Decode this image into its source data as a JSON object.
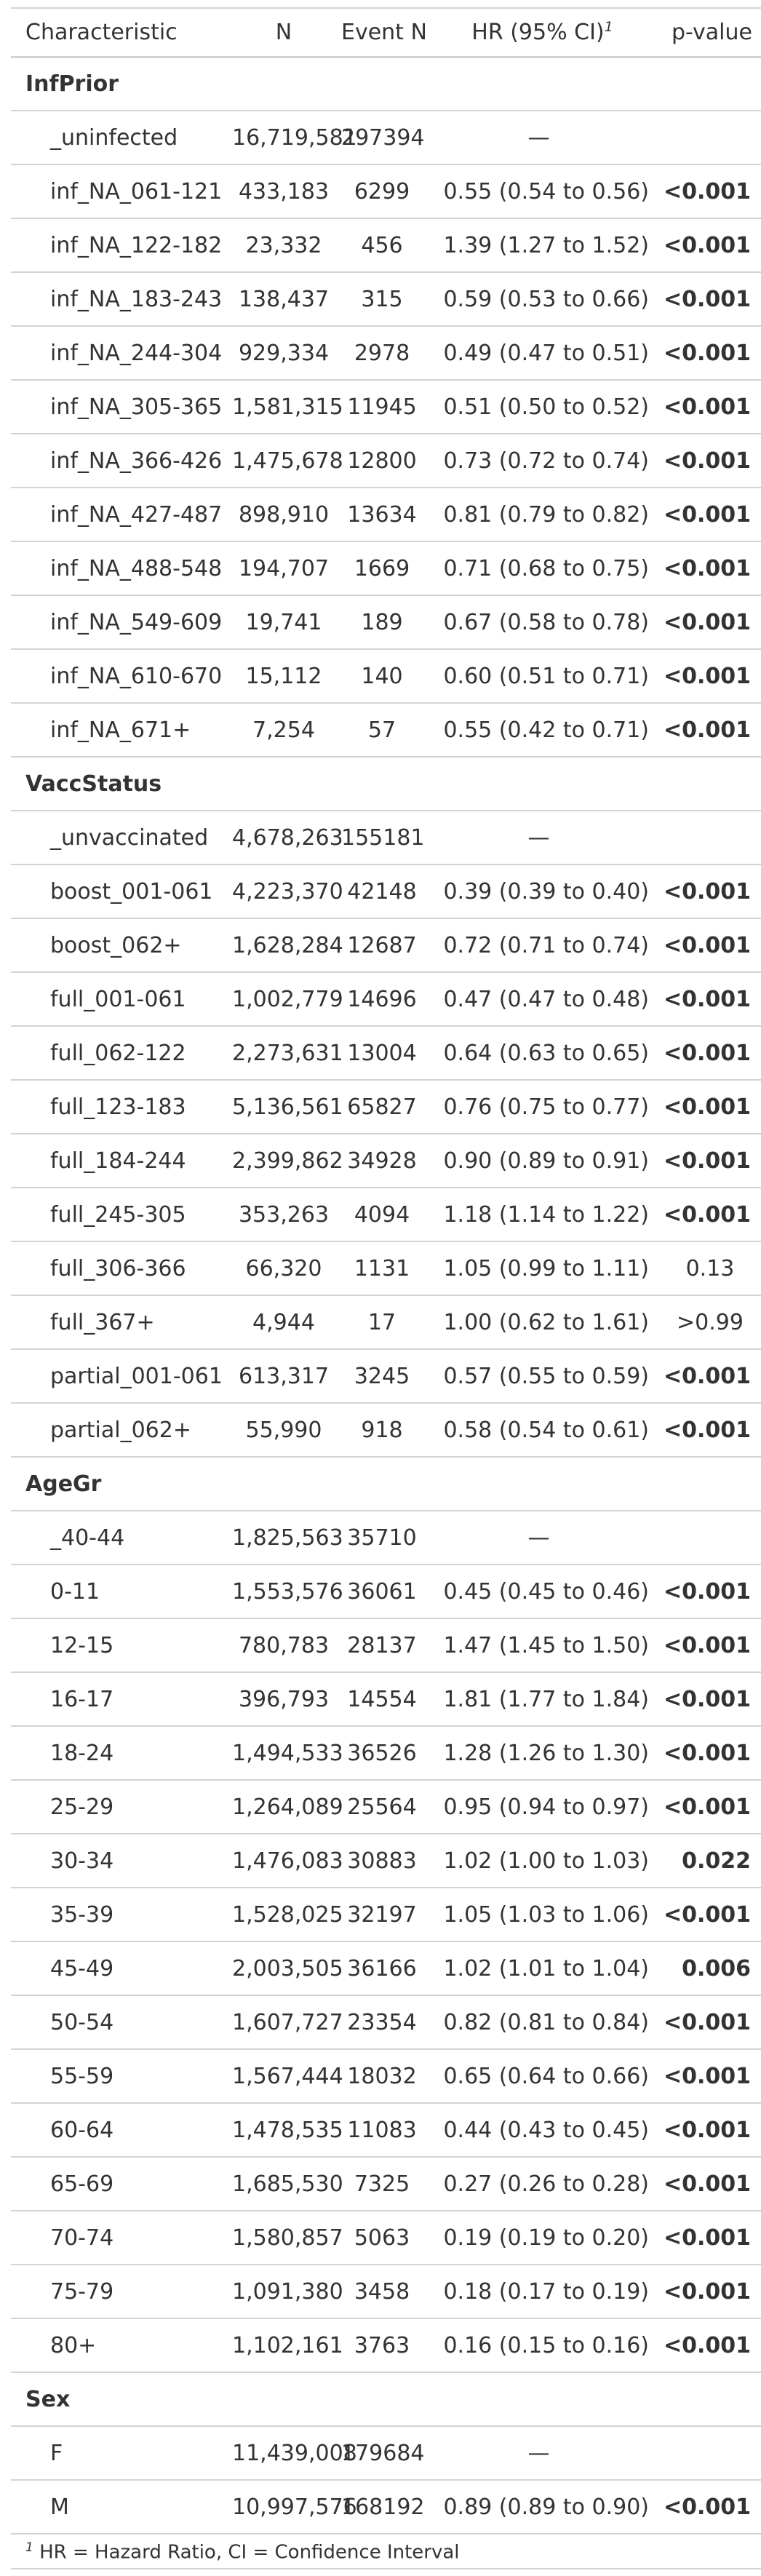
{
  "header": {
    "characteristic": "Characteristic",
    "n": "N",
    "event_n": "Event N",
    "hr": "HR (95% CI)",
    "hr_footnote_mark": "1",
    "p_value": "p-value"
  },
  "groups": [
    {
      "label": "InfPrior",
      "rows": [
        {
          "label": "_uninfected",
          "n": "16,719,581",
          "events": "297394",
          "hr": "—",
          "p": ""
        },
        {
          "label": "inf_NA_061-121",
          "n": "433,183",
          "events": "6299",
          "hr": "0.55 (0.54 to 0.56)",
          "p": "<0.001"
        },
        {
          "label": "inf_NA_122-182",
          "n": "23,332",
          "events": "456",
          "hr": "1.39 (1.27 to 1.52)",
          "p": "<0.001"
        },
        {
          "label": "inf_NA_183-243",
          "n": "138,437",
          "events": "315",
          "hr": "0.59 (0.53 to 0.66)",
          "p": "<0.001"
        },
        {
          "label": "inf_NA_244-304",
          "n": "929,334",
          "events": "2978",
          "hr": "0.49 (0.47 to 0.51)",
          "p": "<0.001"
        },
        {
          "label": "inf_NA_305-365",
          "n": "1,581,315",
          "events": "11945",
          "hr": "0.51 (0.50 to 0.52)",
          "p": "<0.001"
        },
        {
          "label": "inf_NA_366-426",
          "n": "1,475,678",
          "events": "12800",
          "hr": "0.73 (0.72 to 0.74)",
          "p": "<0.001"
        },
        {
          "label": "inf_NA_427-487",
          "n": "898,910",
          "events": "13634",
          "hr": "0.81 (0.79 to 0.82)",
          "p": "<0.001"
        },
        {
          "label": "inf_NA_488-548",
          "n": "194,707",
          "events": "1669",
          "hr": "0.71 (0.68 to 0.75)",
          "p": "<0.001"
        },
        {
          "label": "inf_NA_549-609",
          "n": "19,741",
          "events": "189",
          "hr": "0.67 (0.58 to 0.78)",
          "p": "<0.001"
        },
        {
          "label": "inf_NA_610-670",
          "n": "15,112",
          "events": "140",
          "hr": "0.60 (0.51 to 0.71)",
          "p": "<0.001"
        },
        {
          "label": "inf_NA_671+",
          "n": "7,254",
          "events": "57",
          "hr": "0.55 (0.42 to 0.71)",
          "p": "<0.001"
        }
      ]
    },
    {
      "label": "VaccStatus",
      "rows": [
        {
          "label": "_unvaccinated",
          "n": "4,678,263",
          "events": "155181",
          "hr": "—",
          "p": ""
        },
        {
          "label": "boost_001-061",
          "n": "4,223,370",
          "events": "42148",
          "hr": "0.39 (0.39 to 0.40)",
          "p": "<0.001"
        },
        {
          "label": "boost_062+",
          "n": "1,628,284",
          "events": "12687",
          "hr": "0.72 (0.71 to 0.74)",
          "p": "<0.001"
        },
        {
          "label": "full_001-061",
          "n": "1,002,779",
          "events": "14696",
          "hr": "0.47 (0.47 to 0.48)",
          "p": "<0.001"
        },
        {
          "label": "full_062-122",
          "n": "2,273,631",
          "events": "13004",
          "hr": "0.64 (0.63 to 0.65)",
          "p": "<0.001"
        },
        {
          "label": "full_123-183",
          "n": "5,136,561",
          "events": "65827",
          "hr": "0.76 (0.75 to 0.77)",
          "p": "<0.001"
        },
        {
          "label": "full_184-244",
          "n": "2,399,862",
          "events": "34928",
          "hr": "0.90 (0.89 to 0.91)",
          "p": "<0.001"
        },
        {
          "label": "full_245-305",
          "n": "353,263",
          "events": "4094",
          "hr": "1.18 (1.14 to 1.22)",
          "p": "<0.001"
        },
        {
          "label": "full_306-366",
          "n": "66,320",
          "events": "1131",
          "hr": "1.05 (0.99 to 1.11)",
          "p": "0.13"
        },
        {
          "label": "full_367+",
          "n": "4,944",
          "events": "17",
          "hr": "1.00 (0.62 to 1.61)",
          "p": ">0.99"
        },
        {
          "label": "partial_001-061",
          "n": "613,317",
          "events": "3245",
          "hr": "0.57 (0.55 to 0.59)",
          "p": "<0.001"
        },
        {
          "label": "partial_062+",
          "n": "55,990",
          "events": "918",
          "hr": "0.58 (0.54 to 0.61)",
          "p": "<0.001"
        }
      ]
    },
    {
      "label": "AgeGr",
      "rows": [
        {
          "label": "_40-44",
          "n": "1,825,563",
          "events": "35710",
          "hr": "—",
          "p": ""
        },
        {
          "label": "0-11",
          "n": "1,553,576",
          "events": "36061",
          "hr": "0.45 (0.45 to 0.46)",
          "p": "<0.001"
        },
        {
          "label": "12-15",
          "n": "780,783",
          "events": "28137",
          "hr": "1.47 (1.45 to 1.50)",
          "p": "<0.001"
        },
        {
          "label": "16-17",
          "n": "396,793",
          "events": "14554",
          "hr": "1.81 (1.77 to 1.84)",
          "p": "<0.001"
        },
        {
          "label": "18-24",
          "n": "1,494,533",
          "events": "36526",
          "hr": "1.28 (1.26 to 1.30)",
          "p": "<0.001"
        },
        {
          "label": "25-29",
          "n": "1,264,089",
          "events": "25564",
          "hr": "0.95 (0.94 to 0.97)",
          "p": "<0.001"
        },
        {
          "label": "30-34",
          "n": "1,476,083",
          "events": "30883",
          "hr": "1.02 (1.00 to 1.03)",
          "p": "0.022"
        },
        {
          "label": "35-39",
          "n": "1,528,025",
          "events": "32197",
          "hr": "1.05 (1.03 to 1.06)",
          "p": "<0.001"
        },
        {
          "label": "45-49",
          "n": "2,003,505",
          "events": "36166",
          "hr": "1.02 (1.01 to 1.04)",
          "p": "0.006"
        },
        {
          "label": "50-54",
          "n": "1,607,727",
          "events": "23354",
          "hr": "0.82 (0.81 to 0.84)",
          "p": "<0.001"
        },
        {
          "label": "55-59",
          "n": "1,567,444",
          "events": "18032",
          "hr": "0.65 (0.64 to 0.66)",
          "p": "<0.001"
        },
        {
          "label": "60-64",
          "n": "1,478,535",
          "events": "11083",
          "hr": "0.44 (0.43 to 0.45)",
          "p": "<0.001"
        },
        {
          "label": "65-69",
          "n": "1,685,530",
          "events": "7325",
          "hr": "0.27 (0.26 to 0.28)",
          "p": "<0.001"
        },
        {
          "label": "70-74",
          "n": "1,580,857",
          "events": "5063",
          "hr": "0.19 (0.19 to 0.20)",
          "p": "<0.001"
        },
        {
          "label": "75-79",
          "n": "1,091,380",
          "events": "3458",
          "hr": "0.18 (0.17 to 0.19)",
          "p": "<0.001"
        },
        {
          "label": "80+",
          "n": "1,102,161",
          "events": "3763",
          "hr": "0.16 (0.15 to 0.16)",
          "p": "<0.001"
        }
      ]
    },
    {
      "label": "Sex",
      "rows": [
        {
          "label": "F",
          "n": "11,439,008",
          "events": "179684",
          "hr": "—",
          "p": ""
        },
        {
          "label": "M",
          "n": "10,997,576",
          "events": "168192",
          "hr": "0.89 (0.89 to 0.90)",
          "p": "<0.001"
        }
      ]
    }
  ],
  "footnote": {
    "mark": "1",
    "text": "HR = Hazard Ratio, CI = Confidence Interval"
  }
}
